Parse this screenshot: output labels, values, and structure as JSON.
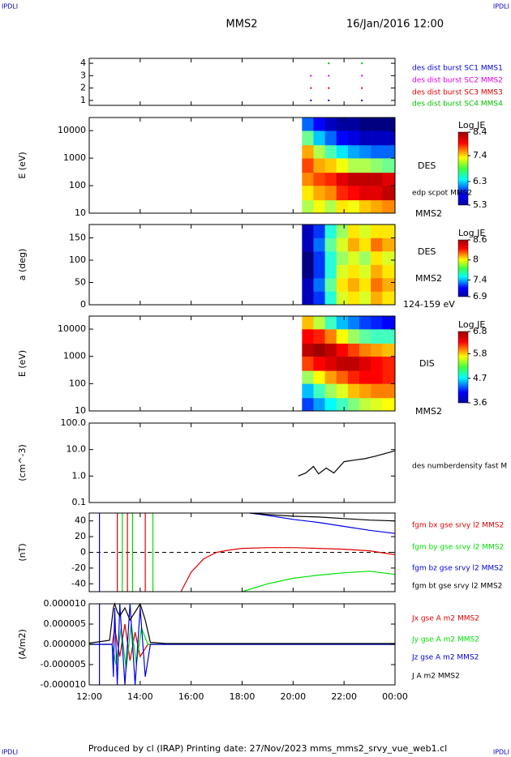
{
  "header": {
    "corner_left": "IPDLI",
    "corner_right": "IPDLI",
    "spacecraft": "MMS2",
    "date": "16/Jan/2016 12:00"
  },
  "footer": {
    "text": "Produced by cl (IRAP)   Printing date: 27/Nov/2023   mms_mms2_srvy_vue_web1.cl",
    "corner_left": "IPDLI",
    "corner_right": "IPDLI"
  },
  "chart_data": [
    {
      "type": "scatter",
      "xlim": [
        0,
        12
      ],
      "ylim": [
        0.6,
        4.4
      ],
      "yticks": [
        1,
        2,
        3,
        4
      ],
      "series": [
        {
          "name": "des dist burst SC1 MMS1",
          "color": "#0000e0",
          "x": [
            8.7,
            9.4,
            10.7
          ],
          "values": [
            1,
            1,
            1
          ]
        },
        {
          "name": "des dist burst SC2 MMS2",
          "color": "#e000e0",
          "x": [
            8.7,
            9.4,
            10.7
          ],
          "values": [
            3,
            3,
            3
          ]
        },
        {
          "name": "des dist burst SC3 MMS3",
          "color": "#e00000",
          "x": [
            8.7,
            9.4,
            10.7
          ],
          "values": [
            2,
            2,
            2
          ]
        },
        {
          "name": "des dist burst SC4 MMS4",
          "color": "#00c000",
          "x": [
            9.4,
            10.7
          ],
          "values": [
            4,
            4
          ]
        }
      ]
    },
    {
      "type": "heatmap",
      "ylabel": "E (eV)",
      "xlim": [
        0,
        12
      ],
      "ylim": [
        10,
        30000
      ],
      "ylog": true,
      "yticks": [
        10,
        100,
        1000,
        10000
      ],
      "colorbar_label": "Log JE",
      "zlim": [
        5.3,
        8.4
      ],
      "zticks": [
        8.4,
        7.4,
        6.3,
        5.3
      ],
      "annotations": [
        "DES",
        "edp scpot MMS2",
        "MMS2"
      ],
      "x_bins": [
        8.35,
        8.8,
        9.25,
        9.7,
        10.15,
        10.6,
        11.05,
        11.5,
        12
      ],
      "y_bins": [
        10,
        30,
        100,
        300,
        1000,
        3000,
        10000,
        30000
      ],
      "values": [
        [
          7.0,
          7.2,
          7.0,
          7.3,
          7.2,
          7.4,
          7.5,
          7.6
        ],
        [
          7.3,
          7.5,
          7.6,
          7.9,
          8.0,
          8.1,
          8.1,
          8.2
        ],
        [
          7.6,
          7.8,
          7.9,
          8.1,
          8.2,
          8.2,
          8.2,
          8.1
        ],
        [
          7.8,
          7.5,
          7.4,
          7.2,
          7.0,
          7.0,
          6.9,
          6.8
        ],
        [
          7.5,
          7.0,
          6.7,
          6.4,
          6.2,
          6.1,
          6.0,
          6.0
        ],
        [
          6.8,
          6.3,
          6.0,
          5.7,
          5.6,
          5.5,
          5.5,
          5.5
        ],
        [
          6.0,
          5.7,
          5.5,
          5.4,
          5.4,
          5.3,
          5.3,
          5.3
        ]
      ]
    },
    {
      "type": "heatmap",
      "ylabel": "a (deg)",
      "xlim": [
        0,
        12
      ],
      "ylim": [
        0,
        180
      ],
      "yticks": [
        0,
        50,
        100,
        150
      ],
      "colorbar_label": "Log JE",
      "zlim": [
        6.9,
        8.6
      ],
      "zticks": [
        8.6,
        8.0,
        7.4,
        6.9
      ],
      "annotations": [
        "DES",
        "MMS2",
        "124-159 eV"
      ],
      "x_bins": [
        8.35,
        8.8,
        9.25,
        9.7,
        10.15,
        10.6,
        11.05,
        11.5,
        12
      ],
      "y_bins": [
        0,
        30,
        60,
        90,
        120,
        150,
        180
      ],
      "values": [
        [
          7.0,
          7.2,
          7.6,
          7.9,
          8.0,
          7.9,
          8.1,
          8.0
        ],
        [
          7.0,
          7.3,
          7.7,
          8.0,
          8.1,
          8.0,
          8.2,
          8.1
        ],
        [
          6.9,
          7.2,
          7.6,
          7.9,
          8.0,
          7.9,
          8.1,
          8.0
        ],
        [
          6.9,
          7.2,
          7.6,
          7.8,
          7.9,
          7.8,
          8.0,
          7.9
        ],
        [
          7.0,
          7.3,
          7.7,
          7.9,
          8.1,
          8.0,
          8.2,
          8.1
        ],
        [
          7.0,
          7.2,
          7.6,
          7.8,
          8.0,
          7.9,
          8.0,
          8.0
        ]
      ]
    },
    {
      "type": "heatmap",
      "ylabel": "E (eV)",
      "xlim": [
        0,
        12
      ],
      "ylim": [
        10,
        30000
      ],
      "ylog": true,
      "yticks": [
        10,
        100,
        1000,
        10000
      ],
      "colorbar_label": "Log JE",
      "zlim": [
        3.6,
        6.8
      ],
      "zticks": [
        6.8,
        5.8,
        4.7,
        3.6
      ],
      "annotations": [
        "DIS",
        "MMS2"
      ],
      "x_bins": [
        8.35,
        8.8,
        9.25,
        9.7,
        10.15,
        10.6,
        11.05,
        11.5,
        12
      ],
      "y_bins": [
        10,
        30,
        100,
        300,
        1000,
        3000,
        10000,
        30000
      ],
      "values": [
        [
          4.2,
          4.5,
          4.8,
          5.0,
          5.2,
          5.4,
          5.5,
          5.6
        ],
        [
          4.6,
          5.0,
          5.3,
          5.5,
          5.8,
          5.9,
          6.0,
          6.0
        ],
        [
          5.3,
          5.6,
          5.9,
          6.1,
          6.3,
          6.4,
          6.4,
          6.3
        ],
        [
          6.2,
          6.4,
          6.5,
          6.6,
          6.6,
          6.5,
          6.4,
          6.3
        ],
        [
          6.6,
          6.7,
          6.6,
          6.4,
          6.2,
          6.0,
          5.9,
          5.8
        ],
        [
          6.4,
          6.3,
          6.0,
          5.6,
          5.3,
          5.1,
          5.0,
          5.0
        ],
        [
          5.8,
          5.4,
          5.0,
          4.6,
          4.4,
          4.2,
          4.1,
          4.0
        ]
      ]
    },
    {
      "type": "line",
      "ylabel": "(cm^-3)",
      "xlim": [
        0,
        12
      ],
      "ylim": [
        0.1,
        100
      ],
      "ylog": true,
      "yticks": [
        0.1,
        {
          "value": 1,
          "label": "1.0"
        },
        {
          "value": 10,
          "label": "10.0"
        },
        {
          "value": 100,
          "label": "100.0"
        }
      ],
      "series": [
        {
          "name": "des numberdensity fast M",
          "color": "#000000",
          "x": [
            8.2,
            8.5,
            8.8,
            9.0,
            9.3,
            9.6,
            10.0,
            10.4,
            10.8,
            11.2,
            11.6,
            12.0
          ],
          "values": [
            1.0,
            1.3,
            2.3,
            1.2,
            2.0,
            1.3,
            3.5,
            4.0,
            4.5,
            5.5,
            7.0,
            9.0
          ]
        }
      ]
    },
    {
      "type": "line",
      "ylabel": "(nT)",
      "xlim": [
        0,
        12
      ],
      "ylim": [
        -50,
        50
      ],
      "yticks": [
        -40,
        -20,
        0,
        20,
        40
      ],
      "reference_line": 0,
      "series": [
        {
          "name": "fgm bx gse srvy l2 MMS2",
          "color": "#e00000",
          "x": [
            1.1,
            1.1,
            null,
            1.5,
            1.5,
            null,
            2.2,
            2.2,
            null,
            3.6,
            4.0,
            4.5,
            5.0,
            5.5,
            6.0,
            7.0,
            8.0,
            9.0,
            10.0,
            11.0,
            12.0
          ],
          "values": [
            -50,
            50,
            null,
            -50,
            50,
            null,
            -50,
            50,
            null,
            -50,
            -25,
            -8,
            0,
            3,
            5,
            6,
            6,
            5,
            4,
            2,
            -3
          ]
        },
        {
          "name": "fgm by gse srvy l2 MMS2",
          "color": "#00e000",
          "x": [
            1.3,
            1.3,
            null,
            1.7,
            1.7,
            null,
            2.5,
            2.5,
            null,
            6.0,
            7.0,
            8.0,
            9.0,
            10.0,
            11.0,
            12.0
          ],
          "values": [
            -50,
            50,
            null,
            -50,
            50,
            null,
            -50,
            50,
            null,
            -50,
            -40,
            -33,
            -29,
            -26,
            -24,
            -28
          ]
        },
        {
          "name": "fgm bz gse srvy l2 MMS2",
          "color": "#0000e0",
          "x": [
            0.4,
            0.4,
            null,
            6.3,
            7.0,
            8.0,
            9.0,
            10.0,
            11.0,
            12.0
          ],
          "values": [
            -50,
            50,
            null,
            50,
            47,
            42,
            38,
            33,
            28,
            24
          ]
        },
        {
          "name": "fgm bt gse srvy l2 MMS2",
          "color": "#000000",
          "x": [
            6.3,
            7.0,
            8.0,
            9.0,
            10.0,
            11.0,
            12.0
          ],
          "values": [
            50,
            48,
            46,
            45,
            43,
            41,
            40
          ]
        }
      ]
    },
    {
      "type": "line",
      "ylabel": "(A/m2)",
      "xlim": [
        0,
        12
      ],
      "ylim": [
        -1e-05,
        1e-05
      ],
      "yticks": [
        {
          "value": -1e-05,
          "label": "-0.000010"
        },
        {
          "value": -5e-06,
          "label": "-0.000005"
        },
        {
          "value": 0,
          "label": "0.000000"
        },
        {
          "value": 5e-06,
          "label": "0.000005"
        },
        {
          "value": 1e-05,
          "label": "0.000010"
        }
      ],
      "xticks": [
        {
          "value": 0,
          "label": "12:00"
        },
        {
          "value": 2,
          "label": "14:00"
        },
        {
          "value": 4,
          "label": "16:00"
        },
        {
          "value": 6,
          "label": "18:00"
        },
        {
          "value": 8,
          "label": "20:00"
        },
        {
          "value": 10,
          "label": "22:00"
        },
        {
          "value": 12,
          "label": "00:00"
        }
      ],
      "series": [
        {
          "name": "Jx gse A m2 MMS2",
          "color": "#e00000",
          "x": [
            0,
            0.9,
            1.0,
            1.2,
            1.4,
            1.6,
            1.8,
            2.0,
            2.3,
            12
          ],
          "values": [
            0,
            0,
            4e-06,
            -3e-06,
            5e-06,
            -4e-06,
            3e-06,
            -3e-06,
            0,
            0
          ]
        },
        {
          "name": "Jy gse A m2 MMS2",
          "color": "#00e000",
          "x": [
            0,
            0.9,
            1.05,
            1.25,
            1.45,
            1.65,
            1.85,
            2.05,
            2.3,
            12
          ],
          "values": [
            0,
            0,
            -5e-06,
            4e-06,
            -6e-06,
            5e-06,
            -5e-06,
            4e-06,
            0,
            0
          ]
        },
        {
          "name": "Jz gse A m2 MMS2",
          "color": "#0000e0",
          "x": [
            0.4,
            0.4,
            null,
            0,
            0.9,
            0.95,
            1.0,
            1.1,
            1.2,
            1.4,
            1.6,
            1.8,
            2.0,
            2.2,
            2.4,
            3.0,
            12
          ],
          "values": [
            -1e-05,
            1e-05,
            null,
            0,
            0,
            -8e-06,
            9e-06,
            -1e-05,
            1e-05,
            -1e-05,
            1e-05,
            -1e-05,
            9e-06,
            -8e-06,
            0,
            0,
            0
          ]
        },
        {
          "name": "J A m2 MMS2",
          "color": "#000000",
          "x": [
            0,
            0.8,
            0.95,
            1.0,
            1.1,
            1.2,
            1.4,
            1.6,
            1.8,
            2.0,
            2.2,
            2.4,
            3.0,
            12
          ],
          "values": [
            3e-07,
            1e-06,
            9e-06,
            1e-05,
            8e-06,
            7e-06,
            9e-06,
            6e-06,
            8e-06,
            1e-05,
            6e-06,
            5e-07,
            2e-07,
            2e-07
          ]
        }
      ]
    }
  ]
}
